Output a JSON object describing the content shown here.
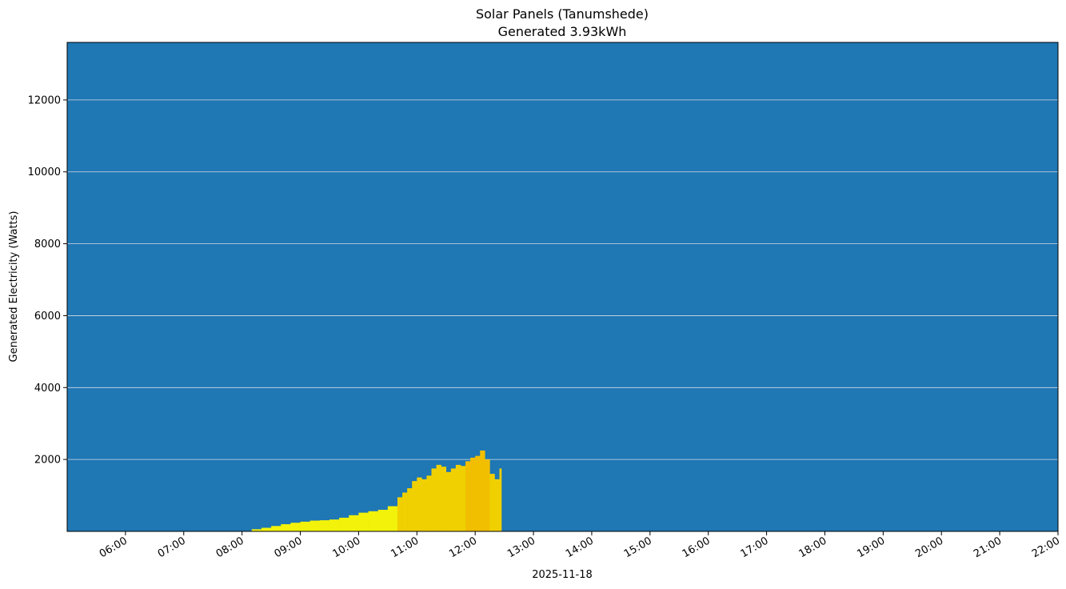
{
  "chart_data": {
    "type": "area",
    "title": "Solar Panels (Tanumshede)",
    "subtitle": "Generated 3.93kWh",
    "xlabel": "2025-11-18",
    "ylabel": "Generated Electricity (Watts)",
    "x_ticks": [
      "06:00",
      "07:00",
      "08:00",
      "09:00",
      "10:00",
      "11:00",
      "12:00",
      "13:00",
      "14:00",
      "15:00",
      "16:00",
      "17:00",
      "18:00",
      "19:00",
      "20:00",
      "21:00",
      "22:00"
    ],
    "y_ticks": [
      2000,
      4000,
      6000,
      8000,
      10000,
      12000
    ],
    "xlim": [
      "05:00",
      "22:00"
    ],
    "ylim": [
      0,
      13600
    ],
    "grid": "horizontal",
    "colors": {
      "plot_background": "#1f77b4",
      "gridline": "#d6dde6",
      "low": "#f2f20a",
      "mid": "#f0d000",
      "high": "#f2bf00"
    },
    "x": [
      "08:10",
      "08:20",
      "08:30",
      "08:40",
      "08:50",
      "09:00",
      "09:10",
      "09:20",
      "09:30",
      "09:40",
      "09:50",
      "10:00",
      "10:10",
      "10:20",
      "10:30",
      "10:40",
      "10:45",
      "10:50",
      "10:55",
      "11:00",
      "11:05",
      "11:10",
      "11:15",
      "11:20",
      "11:25",
      "11:30",
      "11:35",
      "11:40",
      "11:45",
      "11:50",
      "11:55",
      "12:00",
      "12:05",
      "12:10",
      "12:15",
      "12:20",
      "12:25",
      "12:27"
    ],
    "values": [
      60,
      100,
      150,
      200,
      240,
      270,
      300,
      310,
      330,
      380,
      450,
      520,
      560,
      600,
      700,
      950,
      1080,
      1200,
      1400,
      1500,
      1450,
      1550,
      1750,
      1850,
      1800,
      1650,
      1750,
      1850,
      1820,
      1950,
      2050,
      2100,
      2250,
      2000,
      1600,
      1450,
      1750,
      1800
    ]
  }
}
